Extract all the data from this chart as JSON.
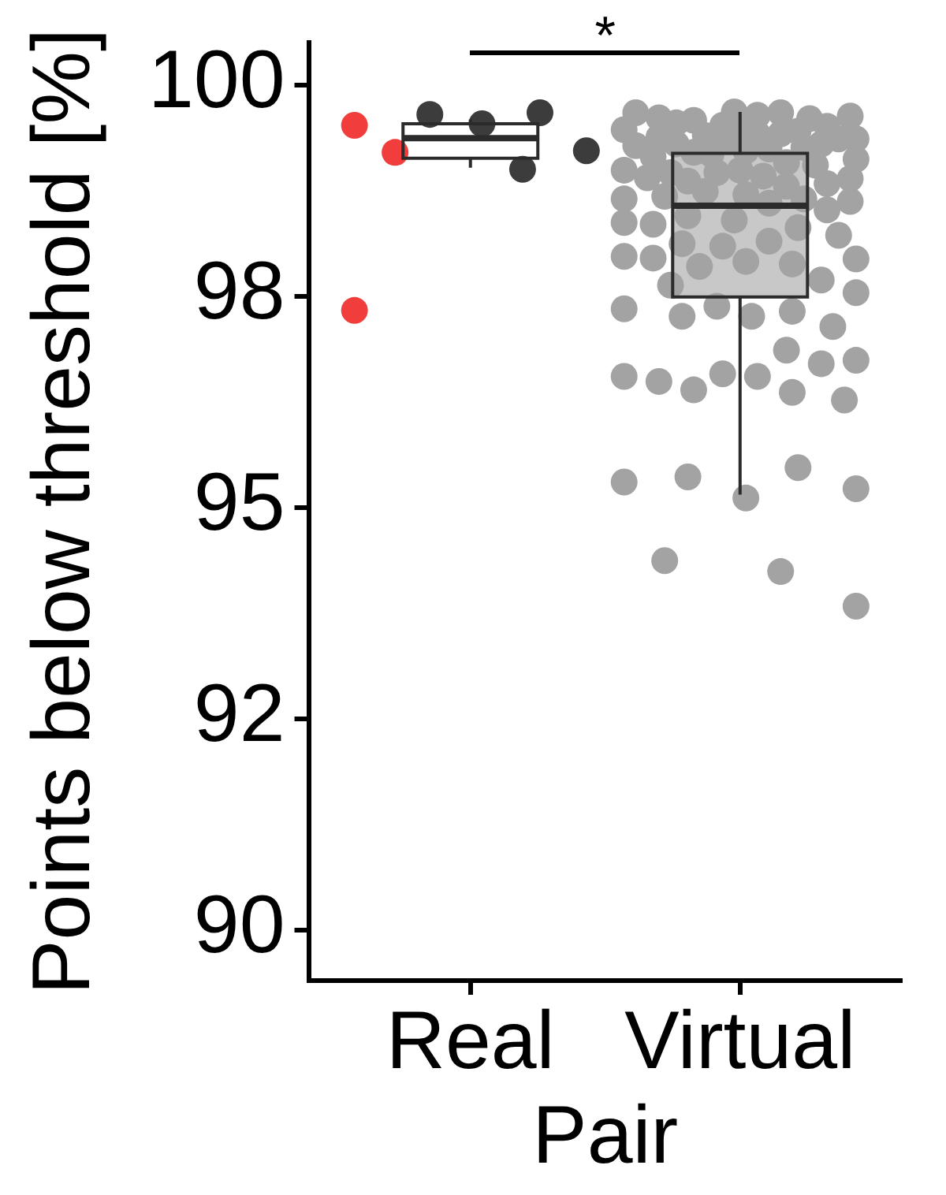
{
  "chart_data": {
    "type": "box",
    "ylabel": "Points below threshold [%]",
    "xlabel": "Pair",
    "categories": [
      "Real",
      "Virtual"
    ],
    "boxes": [
      {
        "low": 99.02,
        "q1": 99.13,
        "median": 99.37,
        "q3": 99.54,
        "high": 99.59
      },
      {
        "low": 95.15,
        "q1": 97.49,
        "median": 98.57,
        "q3": 99.19,
        "high": 99.68
      }
    ],
    "colors": [
      "#ffffff",
      "#c8c8c8"
    ],
    "series": [
      {
        "type": "scatter",
        "color": "#3c3c3c",
        "x": [
          "Real",
          "Real",
          "Real",
          "Real",
          "Real"
        ],
        "values": [
          99.67,
          99.54,
          99.65,
          99.22,
          99.0
        ]
      },
      {
        "type": "scatter",
        "color": "#f23d3d",
        "x": [
          "Real",
          "Real",
          "Real"
        ],
        "values": [
          99.52,
          99.2,
          97.33
        ]
      },
      {
        "type": "scatter",
        "color": "#a3a3a3",
        "x": [
          "Virtual",
          "Virtual",
          "Virtual",
          "Virtual",
          "Virtual",
          "Virtual",
          "Virtual",
          "Virtual",
          "Virtual",
          "Virtual",
          "Virtual",
          "Virtual",
          "Virtual",
          "Virtual",
          "Virtual",
          "Virtual",
          "Virtual",
          "Virtual",
          "Virtual",
          "Virtual",
          "Virtual",
          "Virtual",
          "Virtual",
          "Virtual",
          "Virtual",
          "Virtual",
          "Virtual",
          "Virtual",
          "Virtual",
          "Virtual",
          "Virtual",
          "Virtual",
          "Virtual",
          "Virtual",
          "Virtual",
          "Virtual",
          "Virtual",
          "Virtual",
          "Virtual",
          "Virtual",
          "Virtual",
          "Virtual",
          "Virtual",
          "Virtual",
          "Virtual",
          "Virtual",
          "Virtual",
          "Virtual",
          "Virtual",
          "Virtual",
          "Virtual",
          "Virtual",
          "Virtual",
          "Virtual",
          "Virtual",
          "Virtual",
          "Virtual",
          "Virtual",
          "Virtual",
          "Virtual",
          "Virtual",
          "Virtual",
          "Virtual",
          "Virtual",
          "Virtual",
          "Virtual",
          "Virtual",
          "Virtual",
          "Virtual",
          "Virtual",
          "Virtual",
          "Virtual",
          "Virtual",
          "Virtual",
          "Virtual",
          "Virtual",
          "Virtual",
          "Virtual",
          "Virtual",
          "Virtual",
          "Virtual",
          "Virtual",
          "Virtual",
          "Virtual",
          "Virtual",
          "Virtual",
          "Virtual",
          "Virtual",
          "Virtual",
          "Virtual",
          "Virtual",
          "Virtual",
          "Virtual"
        ],
        "values": [
          99.67,
          99.49,
          99.61,
          99.51,
          99.68,
          99.67,
          99.42,
          99.58,
          99.63,
          99.55,
          99.45,
          99.6,
          99.52,
          99.47,
          99.4,
          99.64,
          99.36,
          99.3,
          99.24,
          99.2,
          99.18,
          99.36,
          99.42,
          99.3,
          99.08,
          99.15,
          99.28,
          99.33,
          99.12,
          99.05,
          99.22,
          99.38,
          99.26,
          98.96,
          98.99,
          98.92,
          98.89,
          98.83,
          98.96,
          98.9,
          98.74,
          98.99,
          98.62,
          98.6,
          98.68,
          98.65,
          98.7,
          98.65,
          98.8,
          98.86,
          98.4,
          98.37,
          98.35,
          98.31,
          98.09,
          98.12,
          98.15,
          98.45,
          98.22,
          98.52,
          97.97,
          97.88,
          97.85,
          97.94,
          97.91,
          97.95,
          97.69,
          97.63,
          97.54,
          97.38,
          97.26,
          97.14,
          97.26,
          97.35,
          97.32,
          96.86,
          96.74,
          96.55,
          96.49,
          96.36,
          96.58,
          96.55,
          96.7,
          96.39,
          96.27,
          95.22,
          95.11,
          95.47,
          95.36,
          95.3,
          94.24,
          94.37,
          93.83
        ]
      }
    ],
    "ylim": [
      89.4,
      100.5
    ],
    "yticks": [
      100,
      {
        "value": 97.5,
        "label": "98"
      },
      95,
      {
        "value": 92.5,
        "label": "92"
      },
      90
    ],
    "annotations": [
      "*"
    ],
    "grid": false,
    "marker": "circle"
  }
}
